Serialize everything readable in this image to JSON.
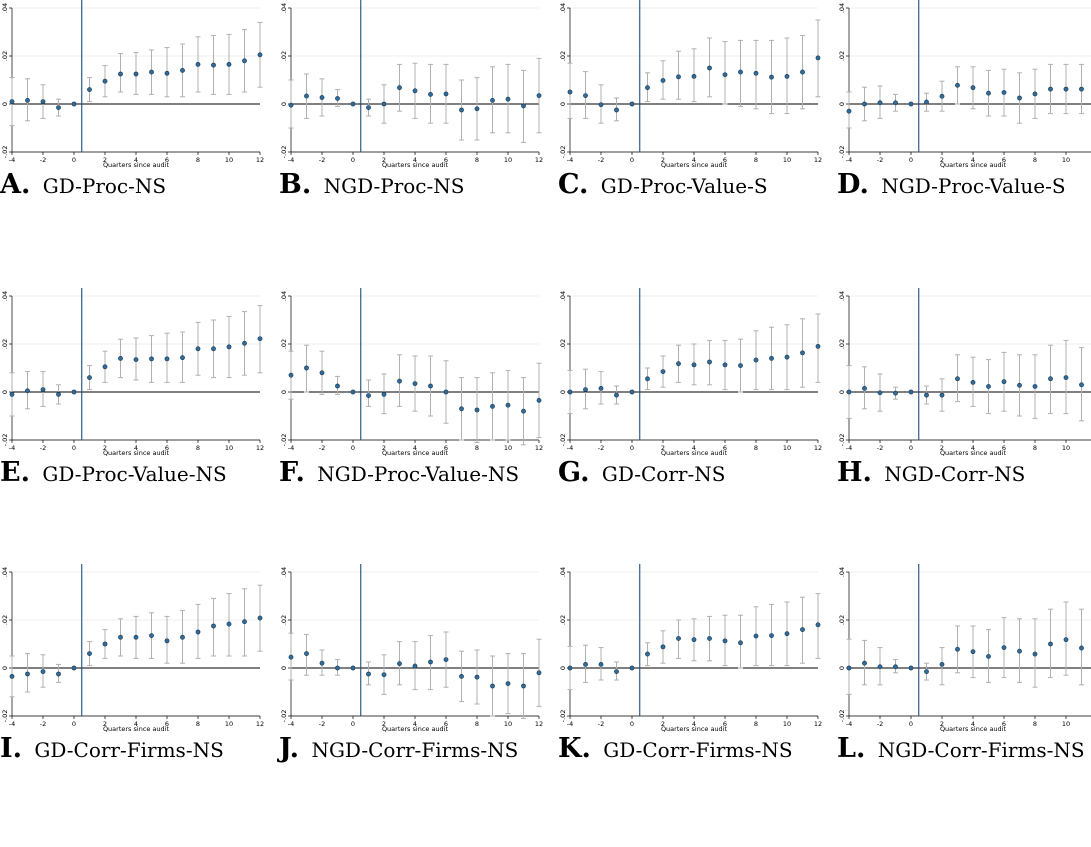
{
  "chart_data": [
    {
      "type": "scatter",
      "panel": "A",
      "title": "GD-Proc-NS",
      "xlabel": "Quarters since audit",
      "ylabel": "",
      "xlim": [
        -4,
        12
      ],
      "ylim": [
        -0.02,
        0.04
      ],
      "xticks": [
        -4,
        -2,
        0,
        2,
        4,
        6,
        8,
        10,
        12
      ],
      "yticks": [
        -0.02,
        0,
        0.02,
        0.04
      ],
      "ytick_labels": [
        "-.02",
        "0",
        ".02",
        ".04"
      ],
      "event_line_x": 0.5,
      "x": [
        -4,
        -3,
        -2,
        -1,
        0,
        1,
        2,
        3,
        4,
        5,
        6,
        7,
        8,
        9,
        10,
        11,
        12
      ],
      "y": [
        0.001,
        0.0015,
        0.001,
        -0.0015,
        0,
        0.006,
        0.0095,
        0.0125,
        0.0125,
        0.0133,
        0.0128,
        0.014,
        0.0165,
        0.0162,
        0.0165,
        0.018,
        0.0205
      ],
      "ci_low": [
        -0.009,
        -0.007,
        -0.006,
        -0.005,
        0,
        0.001,
        0.003,
        0.005,
        0.004,
        0.004,
        0.003,
        0.003,
        0.005,
        0.004,
        0.004,
        0.005,
        0.007
      ],
      "ci_high": [
        0.011,
        0.0105,
        0.008,
        0.002,
        0,
        0.011,
        0.016,
        0.021,
        0.0215,
        0.0225,
        0.0235,
        0.025,
        0.028,
        0.0285,
        0.029,
        0.031,
        0.034
      ]
    },
    {
      "type": "scatter",
      "panel": "B",
      "title": "NGD-Proc-NS",
      "xlabel": "Quarters since audit",
      "ylabel": "",
      "xlim": [
        -4,
        12
      ],
      "ylim": [
        -0.02,
        0.04
      ],
      "xticks": [
        -4,
        -2,
        0,
        2,
        4,
        6,
        8,
        10,
        12
      ],
      "yticks": [
        -0.02,
        0,
        0.02,
        0.04
      ],
      "ytick_labels": [
        "-.02",
        "0",
        ".02",
        ".04"
      ],
      "event_line_x": 0.5,
      "x": [
        -4,
        -3,
        -2,
        -1,
        0,
        1,
        2,
        3,
        4,
        5,
        6,
        7,
        8,
        9,
        10,
        11,
        12
      ],
      "y": [
        -0.0005,
        0.0033,
        0.0027,
        0.0023,
        0,
        -0.0015,
        0,
        0.0068,
        0.0055,
        0.004,
        0.0042,
        -0.0025,
        -0.002,
        0.0015,
        0.002,
        -0.0008,
        0.0035
      ],
      "ci_low": [
        -0.01,
        -0.006,
        -0.005,
        -0.001,
        0,
        -0.005,
        -0.008,
        -0.003,
        -0.006,
        -0.008,
        -0.008,
        -0.015,
        -0.015,
        -0.012,
        -0.012,
        -0.016,
        -0.012
      ],
      "ci_high": [
        0.01,
        0.0125,
        0.0105,
        0.006,
        0,
        0.002,
        0.008,
        0.0165,
        0.017,
        0.0165,
        0.0165,
        0.01,
        0.011,
        0.0155,
        0.0165,
        0.014,
        0.019
      ]
    },
    {
      "type": "scatter",
      "panel": "C",
      "title": "GD-Proc-Value-S",
      "xlabel": "Quarters since audit",
      "ylabel": "",
      "xlim": [
        -4,
        12
      ],
      "ylim": [
        -0.02,
        0.04
      ],
      "xticks": [
        -4,
        -2,
        0,
        2,
        4,
        6,
        8,
        10,
        12
      ],
      "yticks": [
        -0.02,
        0,
        0.02,
        0.04
      ],
      "ytick_labels": [
        "-.02",
        "0",
        ".02",
        ".04"
      ],
      "event_line_x": 0.5,
      "x": [
        -4,
        -3,
        -2,
        -1,
        0,
        1,
        2,
        3,
        4,
        5,
        6,
        7,
        8,
        9,
        10,
        11,
        12
      ],
      "y": [
        0.005,
        0.0035,
        -0.0003,
        -0.0025,
        0,
        0.0068,
        0.0098,
        0.0113,
        0.0115,
        0.015,
        0.0122,
        0.0133,
        0.0128,
        0.0112,
        0.0115,
        0.0133,
        0.0192
      ],
      "ci_low": [
        -0.006,
        -0.006,
        -0.008,
        -0.007,
        0,
        0.001,
        0.002,
        0.002,
        0.001,
        0.003,
        0,
        -0.001,
        -0.002,
        -0.004,
        -0.004,
        -0.002,
        0.003
      ],
      "ci_high": [
        0.017,
        0.0135,
        0.008,
        0.0025,
        0,
        0.013,
        0.018,
        0.022,
        0.023,
        0.0275,
        0.026,
        0.0265,
        0.0265,
        0.0265,
        0.0275,
        0.0285,
        0.035
      ]
    },
    {
      "type": "scatter",
      "panel": "D",
      "title": "NGD-Proc-Value-S",
      "xlabel": "Quarters since audit",
      "ylabel": "",
      "xlim": [
        -4,
        12
      ],
      "ylim": [
        -0.02,
        0.04
      ],
      "xticks": [
        -4,
        -2,
        0,
        2,
        4,
        6,
        8,
        10,
        12
      ],
      "yticks": [
        -0.02,
        0,
        0.02,
        0.04
      ],
      "ytick_labels": [
        "-.02",
        "0",
        ".02",
        ".04"
      ],
      "event_line_x": 0.5,
      "x": [
        -4,
        -3,
        -2,
        -1,
        0,
        1,
        2,
        3,
        4,
        5,
        6,
        7,
        8,
        9,
        10,
        11,
        12
      ],
      "y": [
        -0.003,
        0,
        0.0005,
        0.0005,
        0,
        0.0008,
        0.0032,
        0.0078,
        0.0068,
        0.0045,
        0.0048,
        0.0025,
        0.0042,
        0.0062,
        0.0062,
        0.0062,
        0.0078
      ],
      "ci_low": [
        -0.01,
        -0.007,
        -0.006,
        -0.003,
        0,
        -0.003,
        -0.003,
        0,
        -0.002,
        -0.005,
        -0.005,
        -0.008,
        -0.006,
        -0.004,
        -0.004,
        -0.004,
        -0.002
      ],
      "ci_high": [
        0.005,
        0.007,
        0.0075,
        0.004,
        0,
        0.0045,
        0.0095,
        0.0155,
        0.0155,
        0.014,
        0.0145,
        0.013,
        0.0145,
        0.0165,
        0.0165,
        0.0165,
        0.0175
      ]
    },
    {
      "type": "scatter",
      "panel": "E",
      "title": "GD-Proc-Value-NS",
      "xlabel": "Quarters since audit",
      "ylabel": "",
      "xlim": [
        -4,
        12
      ],
      "ylim": [
        -0.02,
        0.04
      ],
      "xticks": [
        -4,
        -2,
        0,
        2,
        4,
        6,
        8,
        10,
        12
      ],
      "yticks": [
        -0.02,
        0,
        0.02,
        0.04
      ],
      "ytick_labels": [
        "-.02",
        "0",
        ".02",
        ".04"
      ],
      "event_line_x": 0.5,
      "x": [
        -4,
        -3,
        -2,
        -1,
        0,
        1,
        2,
        3,
        4,
        5,
        6,
        7,
        8,
        9,
        10,
        11,
        12
      ],
      "y": [
        -0.001,
        0.0005,
        0.001,
        -0.001,
        0,
        0.006,
        0.0105,
        0.014,
        0.0135,
        0.0138,
        0.0138,
        0.0143,
        0.018,
        0.018,
        0.0188,
        0.0203,
        0.0222
      ],
      "ci_low": [
        -0.01,
        -0.007,
        -0.006,
        -0.005,
        0,
        0.001,
        0.004,
        0.006,
        0.005,
        0.004,
        0.004,
        0.004,
        0.007,
        0.006,
        0.006,
        0.007,
        0.008
      ],
      "ci_high": [
        0.008,
        0.0085,
        0.0085,
        0.003,
        0,
        0.011,
        0.017,
        0.022,
        0.0225,
        0.0235,
        0.0245,
        0.025,
        0.029,
        0.03,
        0.0315,
        0.0335,
        0.036
      ]
    },
    {
      "type": "scatter",
      "panel": "F",
      "title": "NGD-Proc-Value-NS",
      "xlabel": "Quarters since audit",
      "ylabel": "",
      "xlim": [
        -4,
        12
      ],
      "ylim": [
        -0.02,
        0.04
      ],
      "xticks": [
        -4,
        -2,
        0,
        2,
        4,
        6,
        8,
        10,
        12
      ],
      "yticks": [
        -0.02,
        0,
        0.02,
        0.04
      ],
      "ytick_labels": [
        "-.02",
        "0",
        ".02",
        ".04"
      ],
      "event_line_x": 0.5,
      "x": [
        -4,
        -3,
        -2,
        -1,
        0,
        1,
        2,
        3,
        4,
        5,
        6,
        7,
        8,
        9,
        10,
        11,
        12
      ],
      "y": [
        0.007,
        0.01,
        0.008,
        0.0025,
        0,
        -0.0015,
        -0.001,
        0.0045,
        0.0035,
        0.0025,
        0,
        -0.007,
        -0.0075,
        -0.006,
        -0.0055,
        -0.008,
        -0.0035
      ],
      "ci_low": [
        -0.003,
        0,
        -0.001,
        -0.001,
        0,
        -0.006,
        -0.009,
        -0.006,
        -0.008,
        -0.01,
        -0.013,
        -0.02,
        -0.021,
        -0.02,
        -0.02,
        -0.022,
        -0.019
      ],
      "ci_high": [
        0.017,
        0.0195,
        0.017,
        0.0065,
        0,
        0.005,
        0.0075,
        0.0155,
        0.015,
        0.015,
        0.013,
        0.006,
        0.006,
        0.008,
        0.009,
        0.006,
        0.012
      ]
    },
    {
      "type": "scatter",
      "panel": "G",
      "title": "GD-Corr-NS",
      "xlabel": "Quarters since audit",
      "ylabel": "",
      "xlim": [
        -4,
        12
      ],
      "ylim": [
        -0.02,
        0.04
      ],
      "xticks": [
        -4,
        -2,
        0,
        2,
        4,
        6,
        8,
        10,
        12
      ],
      "yticks": [
        -0.02,
        0,
        0.02,
        0.04
      ],
      "ytick_labels": [
        "-.02",
        "0",
        ".02",
        ".04"
      ],
      "event_line_x": 0.5,
      "x": [
        -4,
        -3,
        -2,
        -1,
        0,
        1,
        2,
        3,
        4,
        5,
        6,
        7,
        8,
        9,
        10,
        11,
        12
      ],
      "y": [
        0,
        0.001,
        0.0015,
        -0.0013,
        0,
        0.0055,
        0.0085,
        0.0118,
        0.0113,
        0.0125,
        0.0113,
        0.011,
        0.0133,
        0.014,
        0.0145,
        0.0163,
        0.019
      ],
      "ci_low": [
        -0.009,
        -0.007,
        -0.005,
        -0.005,
        0,
        0.001,
        0.002,
        0.004,
        0.003,
        0.003,
        0.001,
        0,
        0.001,
        0.001,
        0.001,
        0.002,
        0.004
      ],
      "ci_high": [
        0.009,
        0.0095,
        0.0085,
        0.0025,
        0,
        0.01,
        0.015,
        0.0195,
        0.02,
        0.0215,
        0.0215,
        0.022,
        0.0255,
        0.027,
        0.028,
        0.0305,
        0.0325
      ]
    },
    {
      "type": "scatter",
      "panel": "H",
      "title": "NGD-Corr-NS",
      "xlabel": "Quarters since audit",
      "ylabel": "",
      "xlim": [
        -4,
        12
      ],
      "ylim": [
        -0.02,
        0.04
      ],
      "xticks": [
        -4,
        -2,
        0,
        2,
        4,
        6,
        8,
        10,
        12
      ],
      "yticks": [
        -0.02,
        0,
        0.02,
        0.04
      ],
      "ytick_labels": [
        "-.02",
        "0",
        ".02",
        ".04"
      ],
      "event_line_x": 0.5,
      "x": [
        -4,
        -3,
        -2,
        -1,
        0,
        1,
        2,
        3,
        4,
        5,
        6,
        7,
        8,
        9,
        10,
        11,
        12
      ],
      "y": [
        0,
        0.0015,
        -0.0003,
        -0.0005,
        0,
        -0.0013,
        -0.0013,
        0.0055,
        0.004,
        0.0023,
        0.0043,
        0.0028,
        0.0023,
        0.0055,
        0.006,
        0.003,
        0.006
      ],
      "ci_low": [
        -0.011,
        -0.007,
        -0.008,
        -0.003,
        0,
        -0.005,
        -0.008,
        -0.004,
        -0.006,
        -0.009,
        -0.008,
        -0.01,
        -0.011,
        -0.009,
        -0.009,
        -0.012,
        -0.01
      ],
      "ci_high": [
        0.011,
        0.0105,
        0.0075,
        0.002,
        0,
        0.0025,
        0.0055,
        0.0155,
        0.0145,
        0.0135,
        0.0165,
        0.0155,
        0.0155,
        0.0195,
        0.0215,
        0.0185,
        0.022
      ]
    },
    {
      "type": "scatter",
      "panel": "I",
      "title": "GD-Corr-Firms-NS",
      "xlabel": "Quarters since audit",
      "ylabel": "",
      "xlim": [
        -4,
        12
      ],
      "ylim": [
        -0.02,
        0.04
      ],
      "xticks": [
        -4,
        -2,
        0,
        2,
        4,
        6,
        8,
        10,
        12
      ],
      "yticks": [
        -0.02,
        0,
        0.02,
        0.04
      ],
      "ytick_labels": [
        "-.02",
        "0",
        ".02",
        ".04"
      ],
      "event_line_x": 0.5,
      "x": [
        -4,
        -3,
        -2,
        -1,
        0,
        1,
        2,
        3,
        4,
        5,
        6,
        7,
        8,
        9,
        10,
        11,
        12
      ],
      "y": [
        -0.0035,
        -0.0025,
        -0.0015,
        -0.0025,
        0,
        0.006,
        0.01,
        0.0128,
        0.0128,
        0.0135,
        0.0113,
        0.0128,
        0.015,
        0.0175,
        0.0183,
        0.0193,
        0.0208
      ],
      "ci_low": [
        -0.012,
        -0.01,
        -0.008,
        -0.006,
        0,
        0.001,
        0.004,
        0.005,
        0.004,
        0.004,
        0.002,
        0.002,
        0.004,
        0.005,
        0.005,
        0.005,
        0.007
      ],
      "ci_high": [
        0.005,
        0.006,
        0.0055,
        0.0015,
        0,
        0.011,
        0.016,
        0.0205,
        0.0215,
        0.023,
        0.0215,
        0.024,
        0.0265,
        0.029,
        0.031,
        0.033,
        0.0345
      ]
    },
    {
      "type": "scatter",
      "panel": "J",
      "title": "NGD-Corr-Firms-NS",
      "xlabel": "Quarters since audit",
      "ylabel": "",
      "xlim": [
        -4,
        12
      ],
      "ylim": [
        -0.02,
        0.04
      ],
      "xticks": [
        -4,
        -2,
        0,
        2,
        4,
        6,
        8,
        10,
        12
      ],
      "yticks": [
        -0.02,
        0,
        0.02,
        0.04
      ],
      "ytick_labels": [
        "-.02",
        "0",
        ".02",
        ".04"
      ],
      "event_line_x": 0.5,
      "x": [
        -4,
        -3,
        -2,
        -1,
        0,
        1,
        2,
        3,
        4,
        5,
        6,
        7,
        8,
        9,
        10,
        11,
        12
      ],
      "y": [
        0.0045,
        0.006,
        0.002,
        0,
        0,
        -0.0025,
        -0.0028,
        0.0018,
        0.0008,
        0.0025,
        0.0035,
        -0.0035,
        -0.0038,
        -0.0075,
        -0.0065,
        -0.0075,
        -0.002
      ],
      "ci_low": [
        -0.005,
        -0.003,
        -0.003,
        -0.003,
        0,
        -0.007,
        -0.011,
        -0.007,
        -0.009,
        -0.009,
        -0.008,
        -0.014,
        -0.015,
        -0.02,
        -0.019,
        -0.021,
        -0.016
      ],
      "ci_high": [
        0.0145,
        0.014,
        0.0075,
        0.0035,
        0,
        0.0025,
        0.0055,
        0.011,
        0.011,
        0.0135,
        0.015,
        0.007,
        0.0075,
        0.005,
        0.006,
        0.006,
        0.012
      ]
    },
    {
      "type": "scatter",
      "panel": "K",
      "title": "GD-Corr-Firms-NS",
      "xlabel": "Quarters since audit",
      "ylabel": "",
      "xlim": [
        -4,
        12
      ],
      "ylim": [
        -0.02,
        0.04
      ],
      "xticks": [
        -4,
        -2,
        0,
        2,
        4,
        6,
        8,
        10,
        12
      ],
      "yticks": [
        -0.02,
        0,
        0.02,
        0.04
      ],
      "ytick_labels": [
        "-.02",
        "0",
        ".02",
        ".04"
      ],
      "event_line_x": 0.5,
      "x": [
        -4,
        -3,
        -2,
        -1,
        0,
        1,
        2,
        3,
        4,
        5,
        6,
        7,
        8,
        9,
        10,
        11,
        12
      ],
      "y": [
        0,
        0.0015,
        0.0015,
        -0.0015,
        0,
        0.0058,
        0.0088,
        0.0123,
        0.0118,
        0.0123,
        0.0113,
        0.0105,
        0.0133,
        0.0135,
        0.0143,
        0.016,
        0.018
      ],
      "ci_low": [
        -0.009,
        -0.006,
        -0.005,
        -0.005,
        0,
        0.001,
        0.002,
        0.004,
        0.003,
        0.003,
        0.001,
        0,
        0.001,
        0.001,
        0.001,
        0.002,
        0.004
      ],
      "ci_high": [
        0.009,
        0.0095,
        0.0085,
        0.0025,
        0,
        0.0105,
        0.0155,
        0.02,
        0.0205,
        0.0215,
        0.022,
        0.022,
        0.0255,
        0.0265,
        0.0275,
        0.0295,
        0.031
      ]
    },
    {
      "type": "scatter",
      "panel": "L",
      "title": "NGD-Corr-Firms-NS",
      "xlabel": "Quarters since audit",
      "ylabel": "",
      "xlim": [
        -4,
        12
      ],
      "ylim": [
        -0.02,
        0.04
      ],
      "xticks": [
        -4,
        -2,
        0,
        2,
        4,
        6,
        8,
        10,
        12
      ],
      "yticks": [
        -0.02,
        0,
        0.02,
        0.04
      ],
      "ytick_labels": [
        "-.02",
        "0",
        ".02",
        ".04"
      ],
      "event_line_x": 0.5,
      "x": [
        -4,
        -3,
        -2,
        -1,
        0,
        1,
        2,
        3,
        4,
        5,
        6,
        7,
        8,
        9,
        10,
        11,
        12
      ],
      "y": [
        0,
        0.002,
        0.0005,
        0.0005,
        0,
        -0.0015,
        0.0015,
        0.0078,
        0.0068,
        0.0048,
        0.0085,
        0.007,
        0.0058,
        0.01,
        0.0118,
        0.0083,
        0.0118
      ],
      "ci_low": [
        -0.011,
        -0.007,
        -0.007,
        -0.002,
        0,
        -0.005,
        -0.007,
        -0.002,
        -0.004,
        -0.006,
        -0.004,
        -0.006,
        -0.008,
        -0.004,
        -0.003,
        -0.007,
        -0.004
      ],
      "ci_high": [
        0.012,
        0.0115,
        0.0085,
        0.0035,
        0,
        0.002,
        0.0085,
        0.0175,
        0.0175,
        0.016,
        0.021,
        0.0205,
        0.0205,
        0.0245,
        0.0275,
        0.0245,
        0.0275
      ]
    }
  ],
  "colors": {
    "point_fill": "#2f6c99",
    "point_stroke": "#1a3550",
    "ci": "#b0b0b0",
    "event_line": "#1f4e79",
    "zero_line": "#000000",
    "grid": "#e6eaee"
  }
}
